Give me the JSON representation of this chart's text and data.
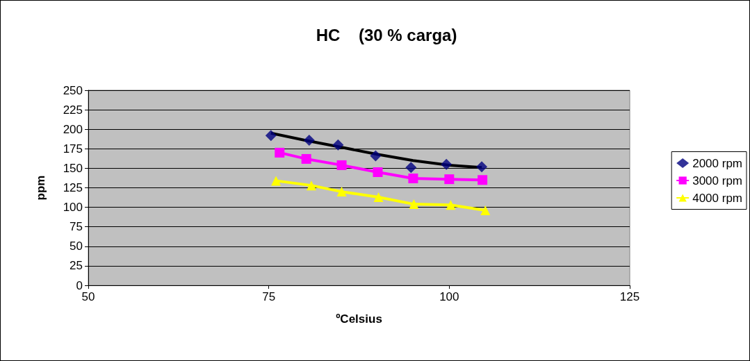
{
  "chart_data": {
    "type": "scatter",
    "title": "HC    (30 % carga)",
    "xlabel": "ºCelsius",
    "ylabel": "ppm",
    "xlim": [
      50,
      125
    ],
    "xticks": [
      50,
      75,
      100,
      125
    ],
    "ylim": [
      0,
      250
    ],
    "yticks": [
      0,
      25,
      50,
      75,
      100,
      125,
      150,
      175,
      200,
      225,
      250
    ],
    "grid": "y",
    "legend": "right",
    "series": [
      {
        "name": "2000 rpm",
        "marker": "diamond",
        "color": "#000080",
        "x": [
          75.3,
          80.6,
          84.6,
          89.8,
          94.7,
          99.6,
          104.5
        ],
        "values": [
          192,
          186,
          180,
          166,
          151,
          155,
          152
        ]
      },
      {
        "type": "line",
        "marker": "none",
        "color": "#000000",
        "x": [
          75.3,
          80,
          85,
          90,
          95,
          100,
          104.5
        ],
        "values": [
          195,
          186,
          177,
          168,
          160,
          154,
          151
        ]
      },
      {
        "name": "3000 rpm",
        "type": "line",
        "marker": "square",
        "color": "#ff00ff",
        "x": [
          76.5,
          80.2,
          85.1,
          90.1,
          95.0,
          100.0,
          104.6
        ],
        "values": [
          170,
          162,
          154,
          145,
          137,
          136,
          135
        ]
      },
      {
        "name": "4000 rpm",
        "type": "line",
        "marker": "triangle",
        "color": "#ffff00",
        "x": [
          76.0,
          80.9,
          85.1,
          90.2,
          95.1,
          100.2,
          105.0
        ],
        "values": [
          134,
          128,
          120,
          113,
          104,
          103,
          96
        ]
      }
    ]
  }
}
